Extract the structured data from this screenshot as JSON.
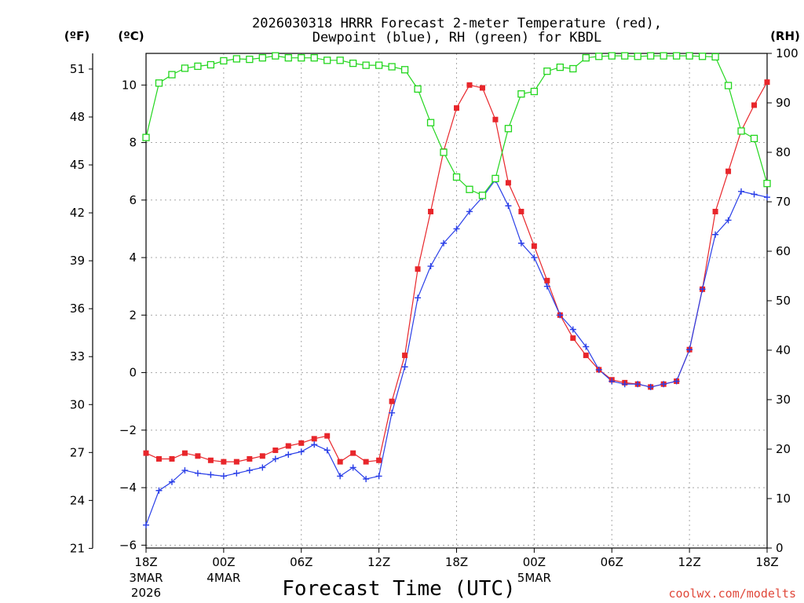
{
  "chart_data": {
    "type": "line",
    "title": "2026030318 HRRR Forecast 2-meter Temperature (red),",
    "title_line2": "Dewpoint (blue), RH (green) for KBDL",
    "station": "KBDL",
    "model": "HRRR",
    "init": "2026030318",
    "xlabel": "Forecast Time (UTC)",
    "credit": "coolwx.com/modelts",
    "units": {
      "left_outer": "(ºF)",
      "left_inner": "(ºC)",
      "right": "(RH)"
    },
    "forecast_hours": [
      0,
      1,
      2,
      3,
      4,
      5,
      6,
      7,
      8,
      9,
      10,
      11,
      12,
      13,
      14,
      15,
      16,
      17,
      18,
      19,
      20,
      21,
      22,
      23,
      24,
      25,
      26,
      27,
      28,
      29,
      30,
      31,
      32,
      33,
      34,
      35,
      36,
      37,
      38,
      39,
      40,
      41,
      42,
      43,
      44,
      45,
      46,
      47,
      48
    ],
    "x_ticks": [
      {
        "hour": 0,
        "label": "18Z",
        "sub1": "3MAR",
        "sub2": "2026"
      },
      {
        "hour": 6,
        "label": "00Z",
        "sub1": "4MAR",
        "sub2": ""
      },
      {
        "hour": 12,
        "label": "06Z",
        "sub1": "",
        "sub2": ""
      },
      {
        "hour": 18,
        "label": "12Z",
        "sub1": "",
        "sub2": ""
      },
      {
        "hour": 24,
        "label": "18Z",
        "sub1": "",
        "sub2": ""
      },
      {
        "hour": 30,
        "label": "00Z",
        "sub1": "5MAR",
        "sub2": ""
      },
      {
        "hour": 36,
        "label": "06Z",
        "sub1": "",
        "sub2": ""
      },
      {
        "hour": 42,
        "label": "12Z",
        "sub1": "",
        "sub2": ""
      },
      {
        "hour": 48,
        "label": "18Z",
        "sub1": "",
        "sub2": ""
      }
    ],
    "xlim": [
      0,
      48
    ],
    "celsius_axis": {
      "ylim": [
        -6.1,
        11.1
      ],
      "ticks": [
        -6,
        -4,
        -2,
        0,
        2,
        4,
        6,
        8,
        10
      ],
      "labels": [
        "−6",
        "−4",
        "−2",
        "0",
        "2",
        "4",
        "6",
        "8",
        "10"
      ]
    },
    "fahrenheit_axis": {
      "ticks": [
        21,
        24,
        27,
        30,
        33,
        36,
        39,
        42,
        45,
        48,
        51
      ],
      "labels": [
        "21",
        "24",
        "27",
        "30",
        "33",
        "36",
        "39",
        "42",
        "45",
        "48",
        "51"
      ]
    },
    "rh_axis": {
      "ylim": [
        0,
        100
      ],
      "ticks": [
        0,
        10,
        20,
        30,
        40,
        50,
        60,
        70,
        80,
        90,
        100
      ],
      "labels": [
        "0",
        "10",
        "20",
        "30",
        "40",
        "50",
        "60",
        "70",
        "80",
        "90",
        "100"
      ]
    },
    "grid": true,
    "series": [
      {
        "name": "2-meter Temperature",
        "units": "C",
        "color": "#e8262b",
        "marker": "filled-square",
        "values": [
          -2.8,
          -3.0,
          -3.0,
          -2.8,
          -2.9,
          -3.05,
          -3.1,
          -3.1,
          -3.0,
          -2.9,
          -2.7,
          -2.55,
          -2.45,
          -2.3,
          -2.2,
          -3.1,
          -2.8,
          -3.1,
          -3.05,
          -1.0,
          0.6,
          3.6,
          5.6,
          7.7,
          9.2,
          10.0,
          9.9,
          8.8,
          6.6,
          5.6,
          4.4,
          3.2,
          2.0,
          1.2,
          0.6,
          0.1,
          -0.25,
          -0.35,
          -0.4,
          -0.5,
          -0.4,
          -0.3,
          0.8,
          2.9,
          5.6,
          7.0,
          8.4,
          9.3,
          10.1
        ]
      },
      {
        "name": "Dewpoint",
        "units": "C",
        "color": "#2a3fe8",
        "marker": "plus",
        "values": [
          -5.3,
          -4.1,
          -3.8,
          -3.4,
          -3.5,
          -3.55,
          -3.6,
          -3.5,
          -3.4,
          -3.3,
          -3.0,
          -2.85,
          -2.75,
          -2.5,
          -2.7,
          -3.6,
          -3.3,
          -3.7,
          -3.6,
          -1.4,
          0.2,
          2.6,
          3.7,
          4.5,
          5.0,
          5.6,
          6.1,
          6.7,
          5.8,
          4.5,
          4.0,
          3.0,
          2.0,
          1.5,
          0.9,
          0.1,
          -0.3,
          -0.4,
          -0.4,
          -0.5,
          -0.4,
          -0.3,
          0.8,
          2.9,
          4.8,
          5.3,
          6.3,
          6.2,
          6.1
        ]
      },
      {
        "name": "Relative Humidity",
        "units": "%",
        "color": "#23d61e",
        "marker": "open-square",
        "values": [
          83,
          94,
          95.7,
          97,
          97.4,
          97.7,
          98.5,
          98.9,
          98.8,
          99.1,
          99.5,
          99.1,
          99.1,
          99.1,
          98.6,
          98.6,
          98,
          97.6,
          97.6,
          97.3,
          96.7,
          92.8,
          86,
          80,
          75,
          72.5,
          71.3,
          74.7,
          84.8,
          91.8,
          92.3,
          96.4,
          97.2,
          96.9,
          99.1,
          99.4,
          99.5,
          99.5,
          99.4,
          99.5,
          99.5,
          99.5,
          99.5,
          99.4,
          99.3,
          93.5,
          84.3,
          82.8,
          73.7
        ]
      }
    ]
  }
}
